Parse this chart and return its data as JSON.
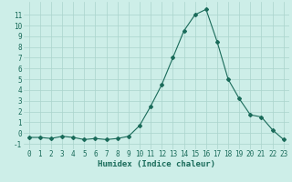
{
  "x": [
    0,
    1,
    2,
    3,
    4,
    5,
    6,
    7,
    8,
    9,
    10,
    11,
    12,
    13,
    14,
    15,
    16,
    17,
    18,
    19,
    20,
    21,
    22,
    23
  ],
  "y": [
    -0.4,
    -0.4,
    -0.5,
    -0.3,
    -0.4,
    -0.6,
    -0.5,
    -0.6,
    -0.5,
    -0.3,
    0.7,
    2.5,
    4.5,
    7.0,
    9.5,
    11.0,
    11.5,
    8.5,
    5.0,
    3.2,
    1.7,
    1.5,
    0.3,
    -0.6
  ],
  "line_color": "#1a6b5a",
  "marker": "D",
  "marker_size": 2.0,
  "bg_color": "#cdeee8",
  "grid_color": "#aad4cc",
  "xlabel": "Humidex (Indice chaleur)",
  "ylim": [
    -1.5,
    12.2
  ],
  "xlim": [
    -0.5,
    23.5
  ],
  "yticks": [
    -1,
    0,
    1,
    2,
    3,
    4,
    5,
    6,
    7,
    8,
    9,
    10,
    11
  ],
  "xticks": [
    0,
    1,
    2,
    3,
    4,
    5,
    6,
    7,
    8,
    9,
    10,
    11,
    12,
    13,
    14,
    15,
    16,
    17,
    18,
    19,
    20,
    21,
    22,
    23
  ],
  "tick_fontsize": 5.5,
  "label_fontsize": 6.5
}
